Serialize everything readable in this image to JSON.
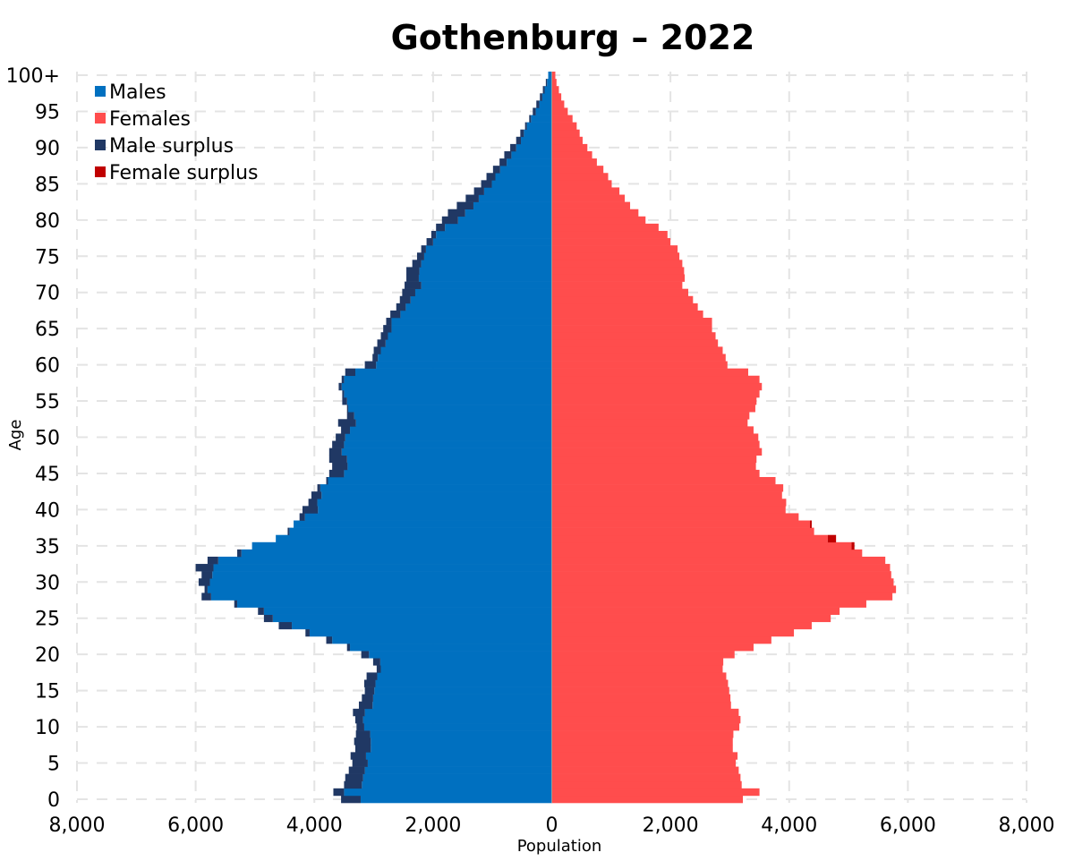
{
  "chart_data": {
    "type": "bar",
    "orientation": "horizontal",
    "title": "Gothenburg – 2022",
    "xlabel": "Population",
    "ylabel": "Age",
    "xlim": [
      -8000,
      8000
    ],
    "ylim": [
      0,
      100
    ],
    "x_ticks": [
      -8000,
      -6000,
      -4000,
      -2000,
      0,
      2000,
      4000,
      6000,
      8000
    ],
    "x_tick_labels": [
      "8,000",
      "6,000",
      "4,000",
      "2,000",
      "0",
      "2,000",
      "4,000",
      "6,000",
      "8,000"
    ],
    "y_ticks": [
      0,
      5,
      10,
      15,
      20,
      25,
      30,
      35,
      40,
      45,
      50,
      55,
      60,
      65,
      70,
      75,
      80,
      85,
      90,
      95,
      100
    ],
    "y_tick_labels": [
      "0",
      "5",
      "10",
      "15",
      "20",
      "25",
      "30",
      "35",
      "40",
      "45",
      "50",
      "55",
      "60",
      "65",
      "70",
      "75",
      "80",
      "85",
      "90",
      "95",
      "100+"
    ],
    "grid": true,
    "legend_position": "top-left",
    "legend": [
      {
        "label": "Males",
        "color": "#0070C0"
      },
      {
        "label": "Females",
        "color": "#FF4D4D"
      },
      {
        "label": "Male surplus",
        "color": "#203864"
      },
      {
        "label": "Female surplus",
        "color": "#C00000"
      }
    ],
    "ages": [
      0,
      1,
      2,
      3,
      4,
      5,
      6,
      7,
      8,
      9,
      10,
      11,
      12,
      13,
      14,
      15,
      16,
      17,
      18,
      19,
      20,
      21,
      22,
      23,
      24,
      25,
      26,
      27,
      28,
      29,
      30,
      31,
      32,
      33,
      34,
      35,
      36,
      37,
      38,
      39,
      40,
      41,
      42,
      43,
      44,
      45,
      46,
      47,
      48,
      49,
      50,
      51,
      52,
      53,
      54,
      55,
      56,
      57,
      58,
      59,
      60,
      61,
      62,
      63,
      64,
      65,
      66,
      67,
      68,
      69,
      70,
      71,
      72,
      73,
      74,
      75,
      76,
      77,
      78,
      79,
      80,
      81,
      82,
      83,
      84,
      85,
      86,
      87,
      88,
      89,
      90,
      91,
      92,
      93,
      94,
      95,
      96,
      97,
      98,
      99,
      100
    ],
    "series": [
      {
        "name": "Males",
        "values": [
          3550,
          3680,
          3500,
          3480,
          3420,
          3360,
          3390,
          3310,
          3330,
          3300,
          3290,
          3310,
          3350,
          3250,
          3200,
          3150,
          3160,
          3120,
          2950,
          3010,
          3210,
          3450,
          3800,
          4150,
          4600,
          4850,
          4950,
          5350,
          5900,
          5850,
          5950,
          5900,
          6000,
          5800,
          5300,
          5050,
          4650,
          4450,
          4350,
          4250,
          4200,
          4100,
          4050,
          3950,
          3800,
          3750,
          3700,
          3750,
          3750,
          3700,
          3640,
          3550,
          3600,
          3450,
          3450,
          3530,
          3530,
          3590,
          3540,
          3480,
          3150,
          3020,
          3000,
          2940,
          2880,
          2840,
          2790,
          2720,
          2620,
          2560,
          2520,
          2480,
          2450,
          2450,
          2350,
          2270,
          2200,
          2110,
          2030,
          1950,
          1850,
          1750,
          1600,
          1450,
          1310,
          1190,
          1100,
          990,
          880,
          800,
          700,
          600,
          530,
          450,
          380,
          320,
          260,
          200,
          150,
          100,
          60
        ],
        "color": "#0070C0"
      },
      {
        "name": "Females",
        "values": [
          3220,
          3500,
          3200,
          3180,
          3150,
          3100,
          3130,
          3050,
          3050,
          3060,
          3160,
          3180,
          3150,
          3020,
          3010,
          2990,
          2970,
          2940,
          2880,
          2890,
          3080,
          3400,
          3700,
          4080,
          4380,
          4700,
          4850,
          5300,
          5740,
          5800,
          5760,
          5720,
          5700,
          5620,
          5230,
          5100,
          4790,
          4420,
          4380,
          4160,
          3940,
          3950,
          3880,
          3900,
          3770,
          3500,
          3440,
          3450,
          3540,
          3500,
          3480,
          3400,
          3300,
          3330,
          3430,
          3450,
          3500,
          3540,
          3500,
          3310,
          2960,
          2930,
          2880,
          2800,
          2760,
          2700,
          2700,
          2550,
          2460,
          2380,
          2300,
          2200,
          2240,
          2230,
          2200,
          2150,
          2120,
          2000,
          1950,
          1800,
          1580,
          1460,
          1320,
          1230,
          1140,
          1010,
          950,
          870,
          760,
          680,
          600,
          520,
          470,
          420,
          350,
          270,
          210,
          160,
          120,
          80,
          60
        ],
        "color": "#FF4D4D"
      }
    ]
  }
}
